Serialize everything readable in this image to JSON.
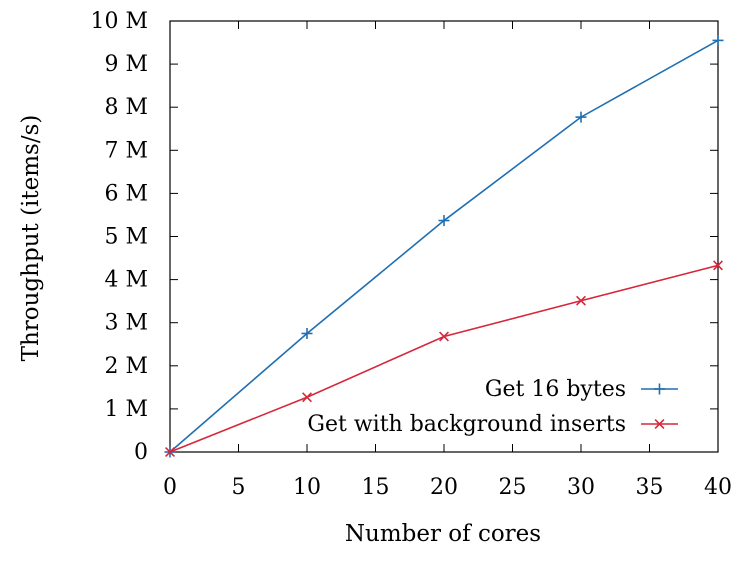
{
  "chart_data": {
    "type": "line",
    "title": "",
    "xlabel": "Number of cores",
    "ylabel": "Throughput (items/s)",
    "xlim": [
      0,
      40
    ],
    "ylim": [
      0,
      10000000
    ],
    "xticks": [
      0,
      5,
      10,
      15,
      20,
      25,
      30,
      35,
      40
    ],
    "xtick_labels": [
      "0",
      "5",
      "10",
      "15",
      "20",
      "25",
      "30",
      "35",
      "40"
    ],
    "yticks": [
      0,
      1000000,
      2000000,
      3000000,
      4000000,
      5000000,
      6000000,
      7000000,
      8000000,
      9000000,
      10000000
    ],
    "ytick_labels": [
      "0",
      "1 M",
      "2 M",
      "3 M",
      "4 M",
      "5 M",
      "6 M",
      "7 M",
      "8 M",
      "9 M",
      "10 M"
    ],
    "grid": false,
    "legend_position": "bottom-right",
    "series": [
      {
        "name": "Get 16 bytes",
        "color": "#1f6fb2",
        "marker": "plus",
        "x": [
          0,
          10,
          20,
          30,
          40
        ],
        "y": [
          0,
          2750000,
          5370000,
          7770000,
          9550000
        ]
      },
      {
        "name": "Get with background inserts",
        "color": "#d6273a",
        "marker": "cross",
        "x": [
          0,
          10,
          20,
          30,
          40
        ],
        "y": [
          0,
          1270000,
          2680000,
          3510000,
          4330000
        ]
      }
    ]
  }
}
